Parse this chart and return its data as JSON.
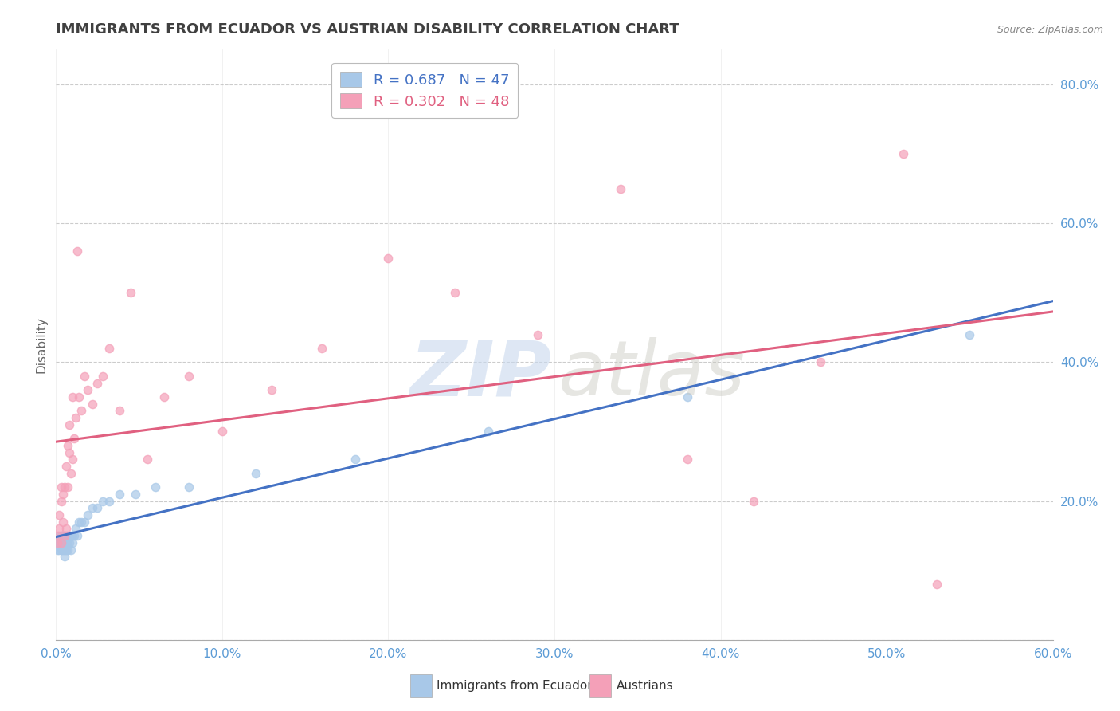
{
  "title": "IMMIGRANTS FROM ECUADOR VS AUSTRIAN DISABILITY CORRELATION CHART",
  "source": "Source: ZipAtlas.com",
  "ylabel": "Disability",
  "xlim": [
    0.0,
    0.6
  ],
  "ylim": [
    0.0,
    0.85
  ],
  "yticks": [
    0.0,
    0.2,
    0.4,
    0.6,
    0.8
  ],
  "xticks": [
    0.0,
    0.1,
    0.2,
    0.3,
    0.4,
    0.5,
    0.6
  ],
  "blue_scatter_color": "#a8c8e8",
  "pink_scatter_color": "#f4a0b8",
  "blue_line_color": "#4472c4",
  "pink_line_color": "#e06080",
  "series1_label": "Immigrants from Ecuador",
  "series2_label": "Austrians",
  "R1": 0.687,
  "N1": 47,
  "R2": 0.302,
  "N2": 48,
  "title_color": "#404040",
  "axis_tick_color": "#5b9bd5",
  "blue_scatter_x": [
    0.001,
    0.001,
    0.002,
    0.002,
    0.002,
    0.003,
    0.003,
    0.003,
    0.003,
    0.004,
    0.004,
    0.004,
    0.005,
    0.005,
    0.005,
    0.006,
    0.006,
    0.006,
    0.007,
    0.007,
    0.007,
    0.008,
    0.008,
    0.009,
    0.009,
    0.01,
    0.01,
    0.011,
    0.012,
    0.013,
    0.014,
    0.015,
    0.017,
    0.019,
    0.022,
    0.025,
    0.028,
    0.032,
    0.038,
    0.048,
    0.06,
    0.08,
    0.12,
    0.18,
    0.26,
    0.38,
    0.55
  ],
  "blue_scatter_y": [
    0.14,
    0.13,
    0.15,
    0.13,
    0.14,
    0.14,
    0.13,
    0.15,
    0.14,
    0.13,
    0.14,
    0.15,
    0.12,
    0.13,
    0.14,
    0.13,
    0.14,
    0.15,
    0.13,
    0.14,
    0.15,
    0.14,
    0.15,
    0.13,
    0.15,
    0.14,
    0.15,
    0.15,
    0.16,
    0.15,
    0.17,
    0.17,
    0.17,
    0.18,
    0.19,
    0.19,
    0.2,
    0.2,
    0.21,
    0.21,
    0.22,
    0.22,
    0.24,
    0.26,
    0.3,
    0.35,
    0.44
  ],
  "pink_scatter_x": [
    0.001,
    0.001,
    0.002,
    0.002,
    0.003,
    0.003,
    0.003,
    0.004,
    0.004,
    0.005,
    0.005,
    0.006,
    0.006,
    0.007,
    0.007,
    0.008,
    0.008,
    0.009,
    0.01,
    0.01,
    0.011,
    0.012,
    0.013,
    0.014,
    0.015,
    0.017,
    0.019,
    0.022,
    0.025,
    0.028,
    0.032,
    0.038,
    0.045,
    0.055,
    0.065,
    0.08,
    0.1,
    0.13,
    0.16,
    0.2,
    0.24,
    0.29,
    0.34,
    0.38,
    0.42,
    0.46,
    0.51,
    0.53
  ],
  "pink_scatter_y": [
    0.14,
    0.15,
    0.16,
    0.18,
    0.14,
    0.2,
    0.22,
    0.17,
    0.21,
    0.15,
    0.22,
    0.16,
    0.25,
    0.28,
    0.22,
    0.31,
    0.27,
    0.24,
    0.26,
    0.35,
    0.29,
    0.32,
    0.56,
    0.35,
    0.33,
    0.38,
    0.36,
    0.34,
    0.37,
    0.38,
    0.42,
    0.33,
    0.5,
    0.26,
    0.35,
    0.38,
    0.3,
    0.36,
    0.42,
    0.55,
    0.5,
    0.44,
    0.65,
    0.26,
    0.2,
    0.4,
    0.7,
    0.08
  ]
}
